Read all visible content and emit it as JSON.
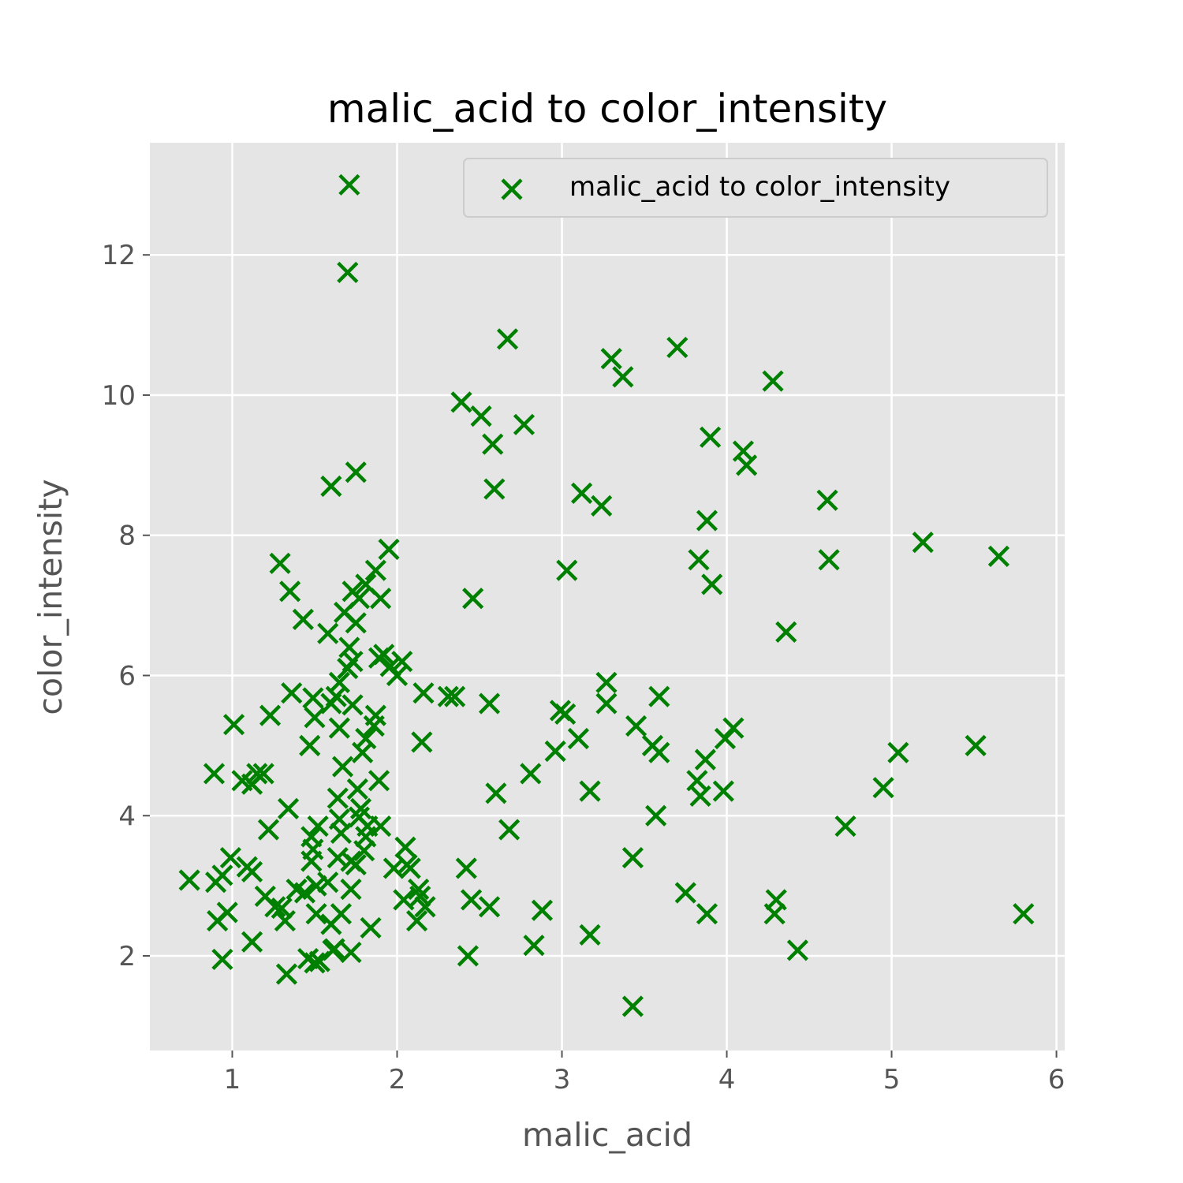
{
  "chart_data": {
    "type": "scatter",
    "title": "malic_acid to color_intensity",
    "xlabel": "malic_acid",
    "ylabel": "color_intensity",
    "xlim": [
      0.5,
      6.05
    ],
    "ylim": [
      0.65,
      13.6
    ],
    "xticks": [
      1,
      2,
      3,
      4,
      5,
      6
    ],
    "yticks": [
      2,
      4,
      6,
      8,
      10,
      12
    ],
    "grid": true,
    "legend_position": "top-right",
    "marker": "x",
    "color": "#008000",
    "series": [
      {
        "name": "malic_acid to color_intensity",
        "points": [
          [
            1.71,
            13.0
          ],
          [
            1.7,
            11.75
          ],
          [
            2.67,
            10.8
          ],
          [
            3.7,
            10.68
          ],
          [
            3.3,
            10.52
          ],
          [
            3.37,
            10.26
          ],
          [
            4.28,
            10.2
          ],
          [
            2.39,
            9.9
          ],
          [
            2.51,
            9.7
          ],
          [
            2.77,
            9.58
          ],
          [
            2.58,
            9.3
          ],
          [
            3.9,
            9.4
          ],
          [
            4.1,
            9.2
          ],
          [
            4.12,
            9.0
          ],
          [
            1.75,
            8.9
          ],
          [
            1.6,
            8.7
          ],
          [
            2.59,
            8.66
          ],
          [
            3.12,
            8.6
          ],
          [
            3.24,
            8.42
          ],
          [
            4.61,
            8.5
          ],
          [
            3.88,
            8.21
          ],
          [
            1.95,
            7.8
          ],
          [
            5.19,
            7.9
          ],
          [
            5.65,
            7.7
          ],
          [
            3.83,
            7.65
          ],
          [
            4.62,
            7.65
          ],
          [
            1.29,
            7.6
          ],
          [
            3.03,
            7.5
          ],
          [
            1.87,
            7.5
          ],
          [
            1.81,
            7.3
          ],
          [
            3.91,
            7.3
          ],
          [
            1.35,
            7.2
          ],
          [
            1.73,
            7.2
          ],
          [
            1.77,
            7.1
          ],
          [
            1.9,
            7.1
          ],
          [
            2.46,
            7.1
          ],
          [
            1.68,
            6.9
          ],
          [
            1.75,
            6.75
          ],
          [
            1.43,
            6.8
          ],
          [
            4.36,
            6.62
          ],
          [
            1.58,
            6.6
          ],
          [
            1.71,
            6.4
          ],
          [
            1.92,
            6.3
          ],
          [
            1.89,
            6.25
          ],
          [
            1.73,
            6.2
          ],
          [
            1.7,
            6.1
          ],
          [
            1.96,
            6.13
          ],
          [
            2.03,
            6.2
          ],
          [
            2.0,
            6.0
          ],
          [
            1.65,
            5.9
          ],
          [
            3.27,
            5.9
          ],
          [
            2.16,
            5.75
          ],
          [
            3.59,
            5.7
          ],
          [
            1.36,
            5.75
          ],
          [
            1.49,
            5.68
          ],
          [
            1.63,
            5.7
          ],
          [
            2.31,
            5.7
          ],
          [
            2.35,
            5.7
          ],
          [
            2.56,
            5.6
          ],
          [
            3.27,
            5.6
          ],
          [
            1.6,
            5.6
          ],
          [
            1.73,
            5.58
          ],
          [
            2.99,
            5.5
          ],
          [
            3.02,
            5.45
          ],
          [
            1.23,
            5.43
          ],
          [
            1.5,
            5.4
          ],
          [
            1.87,
            5.43
          ],
          [
            1.86,
            5.28
          ],
          [
            1.65,
            5.25
          ],
          [
            3.45,
            5.28
          ],
          [
            4.04,
            5.25
          ],
          [
            1.01,
            5.3
          ],
          [
            3.1,
            5.1
          ],
          [
            3.99,
            5.1
          ],
          [
            2.15,
            5.05
          ],
          [
            1.81,
            5.1
          ],
          [
            1.47,
            5.0
          ],
          [
            5.51,
            5.0
          ],
          [
            3.55,
            5.0
          ],
          [
            3.59,
            4.9
          ],
          [
            5.04,
            4.9
          ],
          [
            2.96,
            4.92
          ],
          [
            1.79,
            4.9
          ],
          [
            1.67,
            4.7
          ],
          [
            3.87,
            4.8
          ],
          [
            1.15,
            4.6
          ],
          [
            1.19,
            4.6
          ],
          [
            0.89,
            4.6
          ],
          [
            2.81,
            4.6
          ],
          [
            1.89,
            4.5
          ],
          [
            3.82,
            4.5
          ],
          [
            1.06,
            4.5
          ],
          [
            1.12,
            4.45
          ],
          [
            1.76,
            4.38
          ],
          [
            4.95,
            4.4
          ],
          [
            3.17,
            4.35
          ],
          [
            3.98,
            4.35
          ],
          [
            2.6,
            4.32
          ],
          [
            3.84,
            4.28
          ],
          [
            1.64,
            4.25
          ],
          [
            1.34,
            4.1
          ],
          [
            1.78,
            4.1
          ],
          [
            3.57,
            4.0
          ],
          [
            1.65,
            3.95
          ],
          [
            1.77,
            3.98
          ],
          [
            1.52,
            3.85
          ],
          [
            1.82,
            3.85
          ],
          [
            1.9,
            3.85
          ],
          [
            4.72,
            3.85
          ],
          [
            1.22,
            3.8
          ],
          [
            2.68,
            3.8
          ],
          [
            1.66,
            3.75
          ],
          [
            1.48,
            3.7
          ],
          [
            1.81,
            3.7
          ],
          [
            1.49,
            3.52
          ],
          [
            2.05,
            3.55
          ],
          [
            1.8,
            3.5
          ],
          [
            1.64,
            3.4
          ],
          [
            1.48,
            3.35
          ],
          [
            0.99,
            3.4
          ],
          [
            3.43,
            3.4
          ],
          [
            1.72,
            3.35
          ],
          [
            2.06,
            3.3
          ],
          [
            2.08,
            3.25
          ],
          [
            1.09,
            3.27
          ],
          [
            2.42,
            3.25
          ],
          [
            1.12,
            3.2
          ],
          [
            1.98,
            3.25
          ],
          [
            1.75,
            3.3
          ],
          [
            0.94,
            3.15
          ],
          [
            0.74,
            3.08
          ],
          [
            0.9,
            3.05
          ],
          [
            1.58,
            3.05
          ],
          [
            1.51,
            3.0
          ],
          [
            2.13,
            2.95
          ],
          [
            1.39,
            2.95
          ],
          [
            1.72,
            2.95
          ],
          [
            1.44,
            2.9
          ],
          [
            3.75,
            2.9
          ],
          [
            1.2,
            2.85
          ],
          [
            2.14,
            2.85
          ],
          [
            4.3,
            2.8
          ],
          [
            2.45,
            2.8
          ],
          [
            2.04,
            2.8
          ],
          [
            1.3,
            2.68
          ],
          [
            1.26,
            2.7
          ],
          [
            2.56,
            2.7
          ],
          [
            2.17,
            2.7
          ],
          [
            2.88,
            2.65
          ],
          [
            0.97,
            2.62
          ],
          [
            1.51,
            2.6
          ],
          [
            1.66,
            2.6
          ],
          [
            3.88,
            2.6
          ],
          [
            4.29,
            2.6
          ],
          [
            5.8,
            2.6
          ],
          [
            1.32,
            2.5
          ],
          [
            0.91,
            2.5
          ],
          [
            2.12,
            2.5
          ],
          [
            1.6,
            2.45
          ],
          [
            1.84,
            2.4
          ],
          [
            3.17,
            2.3
          ],
          [
            1.12,
            2.2
          ],
          [
            2.83,
            2.15
          ],
          [
            1.62,
            2.1
          ],
          [
            4.43,
            2.08
          ],
          [
            1.72,
            2.05
          ],
          [
            2.43,
            2.0
          ],
          [
            1.61,
            2.08
          ],
          [
            1.5,
            1.9
          ],
          [
            1.46,
            1.96
          ],
          [
            0.94,
            1.95
          ],
          [
            1.53,
            1.92
          ],
          [
            1.33,
            1.74
          ],
          [
            3.43,
            1.28
          ]
        ]
      }
    ]
  }
}
